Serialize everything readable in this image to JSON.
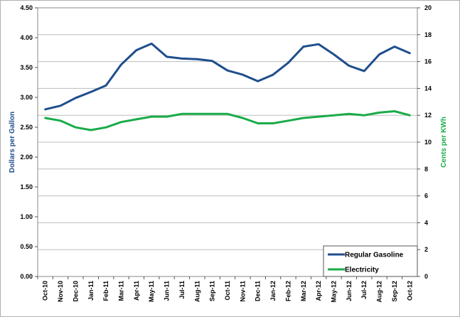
{
  "chart_data": {
    "type": "line",
    "categories": [
      "Oct-10",
      "Nov-10",
      "Dec-10",
      "Jan-11",
      "Feb-11",
      "Mar-11",
      "Apr-11",
      "May-11",
      "Jun-11",
      "Jul-11",
      "Aug-11",
      "Sep-11",
      "Oct-11",
      "Nov-11",
      "Dec-11",
      "Jan-12",
      "Feb-12",
      "Mar-12",
      "Apr-12",
      "May-12",
      "Jun-12",
      "Jul-12",
      "Aug-12",
      "Sep-12",
      "Oct-12"
    ],
    "series": [
      {
        "name": "Regular Gasoline",
        "axis": "left",
        "color": "#1f4e8c",
        "values": [
          2.8,
          2.86,
          2.99,
          3.09,
          3.2,
          3.55,
          3.79,
          3.9,
          3.68,
          3.65,
          3.64,
          3.61,
          3.45,
          3.38,
          3.27,
          3.38,
          3.58,
          3.85,
          3.89,
          3.72,
          3.53,
          3.44,
          3.72,
          3.85,
          3.74
        ]
      },
      {
        "name": "Electricity",
        "axis": "right",
        "color": "#1aab48",
        "values": [
          11.8,
          11.6,
          11.1,
          10.9,
          11.1,
          11.5,
          11.7,
          11.9,
          11.9,
          12.1,
          12.1,
          12.1,
          12.1,
          11.8,
          11.4,
          11.4,
          11.6,
          11.8,
          11.9,
          12.0,
          12.1,
          12.0,
          12.2,
          12.3,
          12.0
        ]
      }
    ],
    "ylabel": "Dollars per Gallon",
    "y2label": "Cents per KWh",
    "ylim": [
      0,
      4.5
    ],
    "y2lim": [
      0,
      20
    ],
    "yticks": [
      "0.00",
      "0.50",
      "1.00",
      "1.50",
      "2.00",
      "2.50",
      "3.00",
      "3.50",
      "4.00",
      "4.50"
    ],
    "y2ticks": [
      "0",
      "2",
      "4",
      "6",
      "8",
      "10",
      "12",
      "14",
      "16",
      "18",
      "20"
    ],
    "grid": true,
    "legend_position": "bottom-right",
    "colors": {
      "ylabel": "#1f4e8c",
      "y2label": "#1aab48",
      "grid": "#bdbdbd",
      "plot_border": "#888888"
    }
  }
}
